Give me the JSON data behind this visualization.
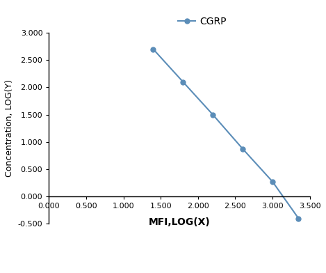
{
  "x": [
    1.4,
    1.8,
    2.2,
    2.6,
    3.0,
    3.35
  ],
  "y": [
    2.7,
    2.1,
    1.5,
    0.875,
    0.275,
    -0.4
  ],
  "line_color": "#5b8db8",
  "marker_style": "o",
  "marker_size": 5,
  "legend_label": "CGRP",
  "xlabel": "MFI,LOG(X)",
  "ylabel": "Concentration, LOG(Y)",
  "xlim": [
    0.0,
    3.5
  ],
  "ylim": [
    -0.5,
    3.0
  ],
  "xticks": [
    0.0,
    0.5,
    1.0,
    1.5,
    2.0,
    2.5,
    3.0,
    3.5
  ],
  "yticks": [
    -0.5,
    0.0,
    0.5,
    1.0,
    1.5,
    2.0,
    2.5,
    3.0
  ],
  "background_color": "#ffffff",
  "xlabel_fontsize": 10,
  "ylabel_fontsize": 9,
  "tick_fontsize": 8,
  "legend_fontsize": 10
}
